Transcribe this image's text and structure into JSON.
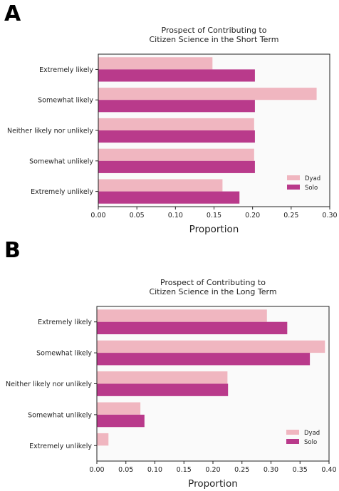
{
  "colors": {
    "dyad": "#f0b6c0",
    "solo": "#b93a8b",
    "plot_bg": "#fafafa",
    "frame": "#222222"
  },
  "chart_data": [
    {
      "panel_label": "A",
      "type": "bar",
      "orientation": "horizontal",
      "title_lines": [
        "Prospect of Contributing to",
        "Citizen Science in the Short Term"
      ],
      "xlabel": "Proportion",
      "ylabel": "",
      "xlim": [
        0,
        0.3
      ],
      "xticks": [
        "0.00",
        "0.05",
        "0.10",
        "0.15",
        "0.20",
        "0.25",
        "0.30"
      ],
      "categories": [
        "Extremely likely",
        "Somewhat likely",
        "Neither likely nor unlikely",
        "Somewhat unlikely",
        "Extremely unlikely"
      ],
      "series": [
        {
          "name": "Dyad",
          "values": [
            0.148,
            0.283,
            0.202,
            0.202,
            0.161
          ]
        },
        {
          "name": "Solo",
          "values": [
            0.203,
            0.203,
            0.203,
            0.203,
            0.183
          ]
        }
      ],
      "legend": "lower-right",
      "grid": false
    },
    {
      "panel_label": "B",
      "type": "bar",
      "orientation": "horizontal",
      "title_lines": [
        "Prospect of Contributing to",
        "Citizen Science in the Long Term"
      ],
      "xlabel": "Proportion",
      "ylabel": "",
      "xlim": [
        0,
        0.4
      ],
      "xticks": [
        "0.00",
        "0.05",
        "0.10",
        "0.15",
        "0.20",
        "0.25",
        "0.30",
        "0.35",
        "0.40"
      ],
      "categories": [
        "Extremely likely",
        "Somewhat likely",
        "Neither likely nor unlikely",
        "Somewhat unlikely",
        "Extremely unlikely"
      ],
      "series": [
        {
          "name": "Dyad",
          "values": [
            0.293,
            0.393,
            0.225,
            0.075,
            0.02
          ]
        },
        {
          "name": "Solo",
          "values": [
            0.328,
            0.367,
            0.226,
            0.082,
            0.0
          ]
        }
      ],
      "legend": "lower-right",
      "grid": false
    }
  ]
}
